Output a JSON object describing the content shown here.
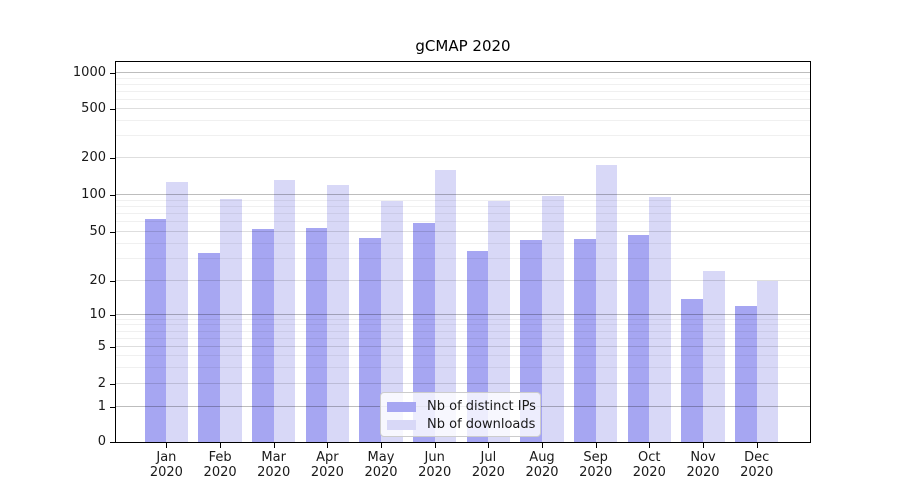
{
  "chart_data": {
    "type": "bar",
    "title": "gCMAP 2020",
    "categories": [
      "Jan 2020",
      "Feb 2020",
      "Mar 2020",
      "Apr 2020",
      "May 2020",
      "Jun 2020",
      "Jul 2020",
      "Aug 2020",
      "Sep 2020",
      "Oct 2020",
      "Nov 2020",
      "Dec 2020"
    ],
    "x_tick_months": [
      "Jan",
      "Feb",
      "Mar",
      "Apr",
      "May",
      "Jun",
      "Jul",
      "Aug",
      "Sep",
      "Oct",
      "Nov",
      "Dec"
    ],
    "x_tick_year": "2020",
    "series": [
      {
        "name": "Nb of distinct IPs",
        "color": "#a6a6f2",
        "values": [
          64,
          34,
          53,
          54,
          45,
          59,
          35,
          43,
          44,
          47,
          14,
          12
        ]
      },
      {
        "name": "Nb of downloads",
        "color": "#d8d8f7",
        "values": [
          128,
          93,
          133,
          120,
          90,
          160,
          89,
          99,
          175,
          97,
          24,
          20
        ]
      }
    ],
    "xlabel": "",
    "ylabel": "",
    "yscale": "symlog",
    "y_ticks": [
      0,
      1,
      2,
      5,
      10,
      20,
      50,
      100,
      200,
      500,
      1000
    ],
    "ylim": [
      0,
      1250
    ],
    "grid": "horizontal",
    "legend_position": "lower-center",
    "colors": {
      "major_gridline": "#bdbdbd",
      "sub_gridline": "#dddddd",
      "minor_gridline": "#efefef",
      "axis": "#000000",
      "text": "#1a1a1a",
      "legend_border": "#cccccc"
    }
  }
}
